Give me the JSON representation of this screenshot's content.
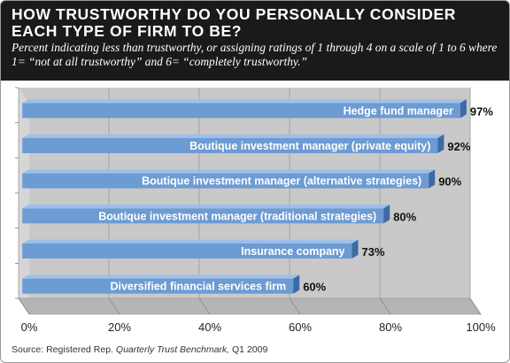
{
  "header": {
    "title": "HOW TRUSTWORTHY DO YOU PERSONALLY CONSIDER EACH TYPE OF FIRM TO BE?",
    "subtitle": "Percent indicating less than trustworthy, or assigning ratings of 1 through 4 on a scale of 1 to 6 where 1= “not at all trustworthy” and 6= “completely trustworthy.”"
  },
  "source": {
    "prefix": "Source: Registered Rep.",
    "publication": "Quarterly Trust Benchmark,",
    "suffix": "Q1 2009"
  },
  "colors": {
    "bar": "#6d9bd3",
    "bar_dark": "#3e6aa4",
    "bar_top": "#9cc0ea",
    "wall": "#c9c9c9",
    "floor": "#b5b5b5",
    "header_bg": "#1a1a1a"
  },
  "chart_data": {
    "type": "bar",
    "orientation": "horizontal",
    "categories": [
      "Hedge fund manager",
      "Boutique investment manager (private equity)",
      "Boutique investment manager (alternative strategies)",
      "Boutique investment manager (traditional strategies)",
      "Insurance company",
      "Diversified financial services firm"
    ],
    "values": [
      97,
      92,
      90,
      80,
      73,
      60
    ],
    "value_labels": [
      "97%",
      "92%",
      "90%",
      "80%",
      "73%",
      "60%"
    ],
    "xlim": [
      0,
      100
    ],
    "x_ticks": [
      0,
      20,
      40,
      60,
      80,
      100
    ],
    "x_tick_labels": [
      "0%",
      "20%",
      "40%",
      "60%",
      "80%",
      "100%"
    ],
    "grid": true
  }
}
